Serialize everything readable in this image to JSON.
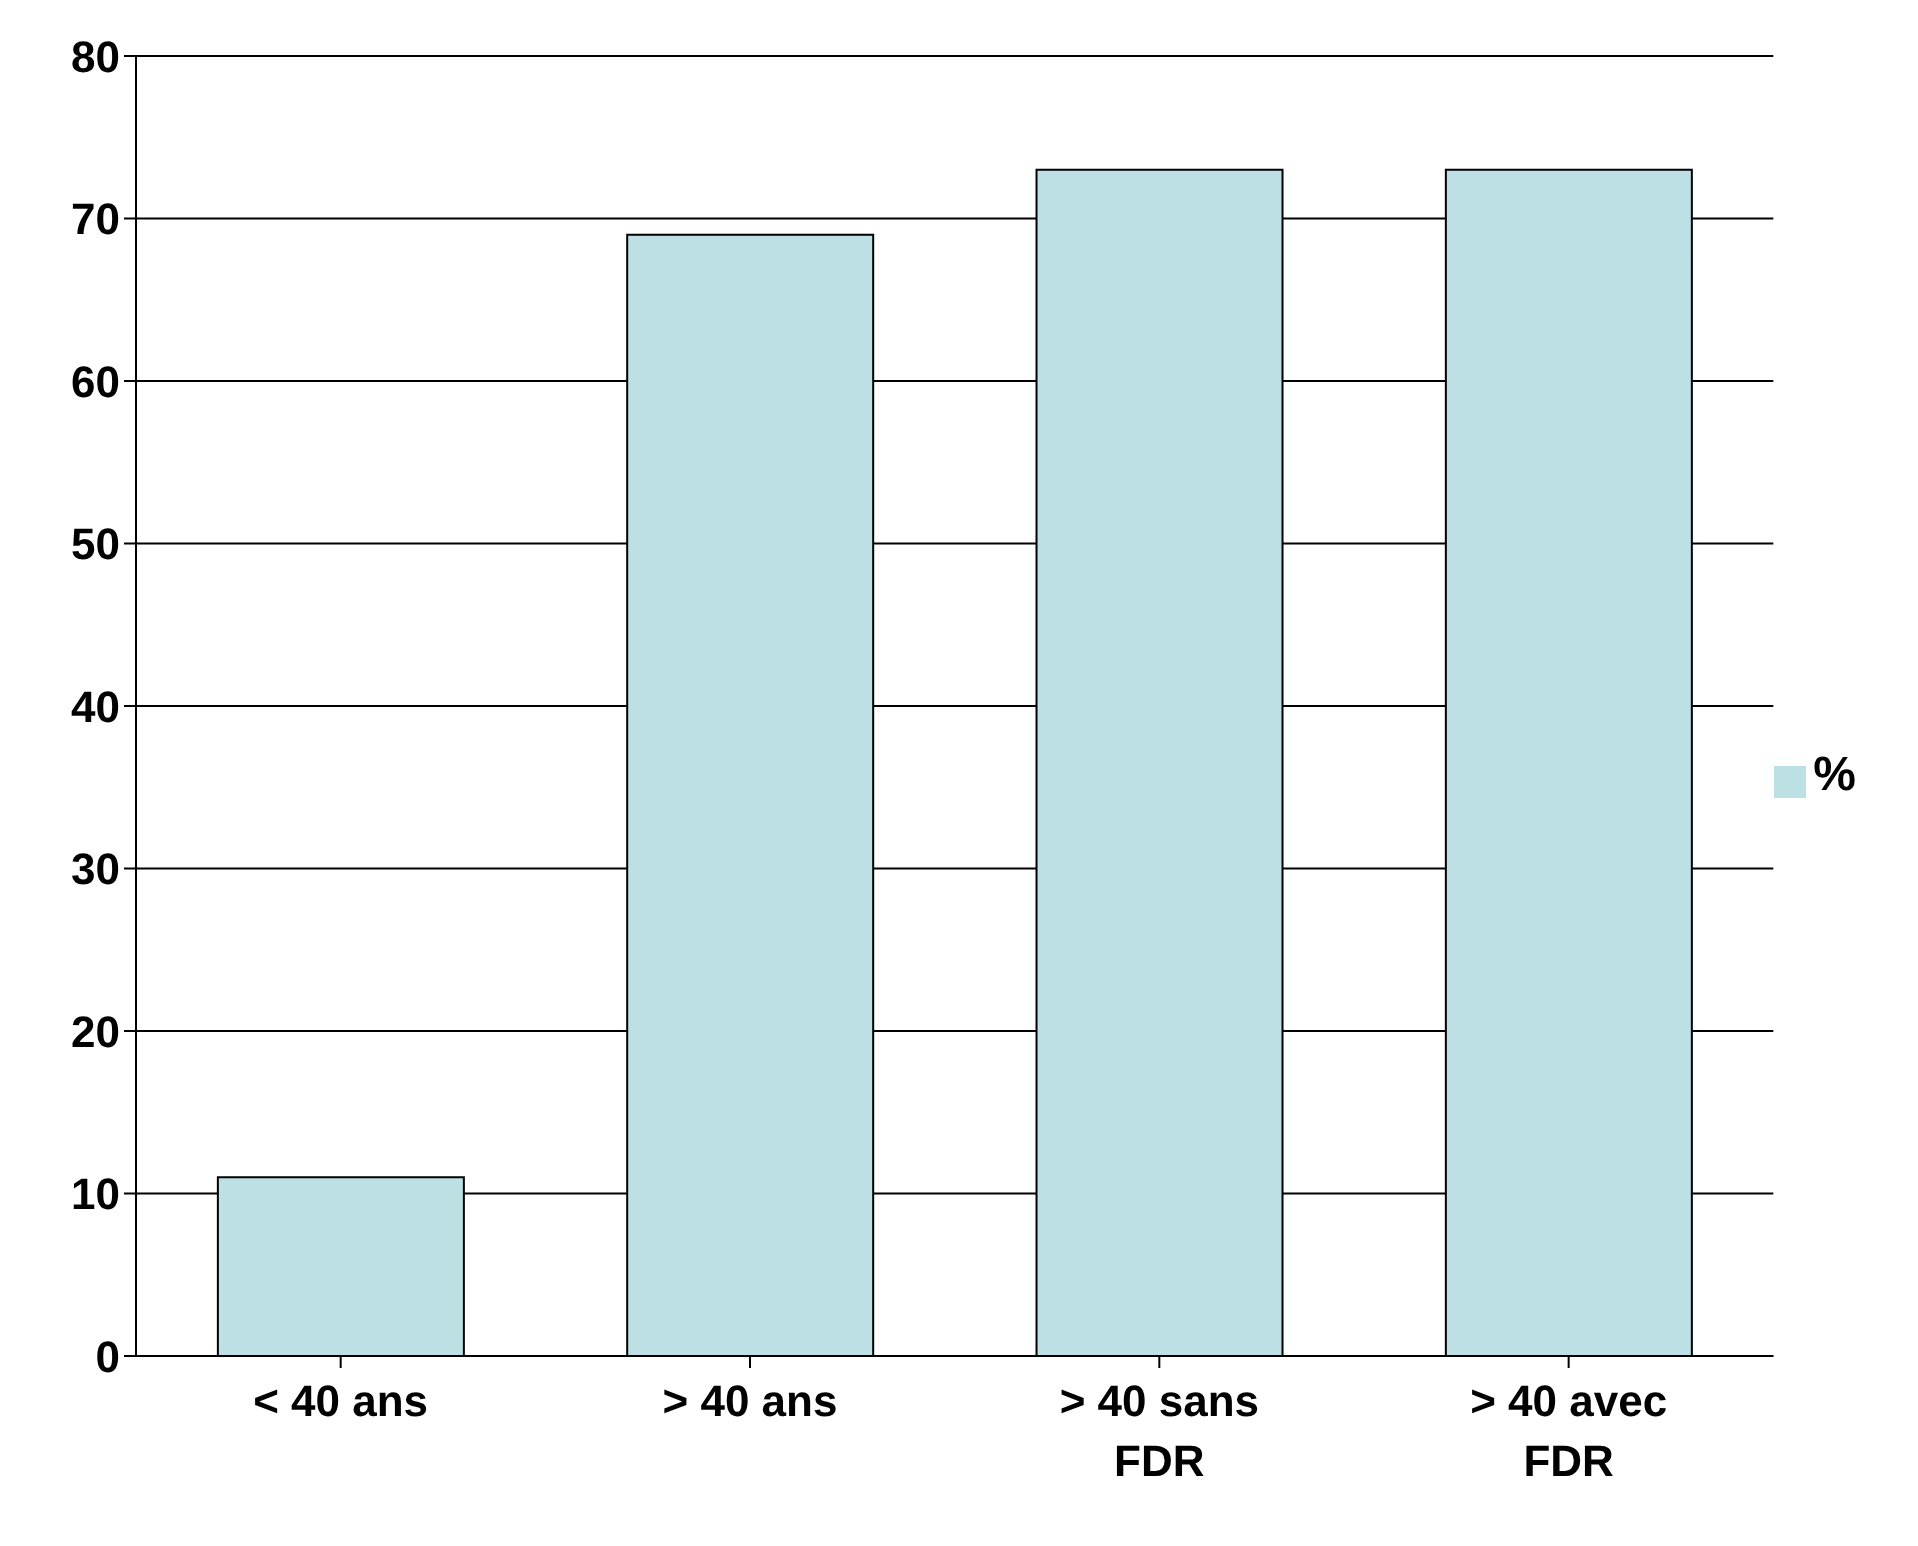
{
  "chart_data": {
    "type": "bar",
    "categories": [
      "< 40 ans",
      "> 40 ans",
      "> 40 sans FDR",
      "> 40 avec FDR"
    ],
    "series": [
      {
        "name": "%",
        "color": "#bce0e3",
        "values": [
          11,
          69,
          73,
          73
        ]
      }
    ],
    "ylim": [
      0,
      80
    ],
    "yticks": [
      0,
      10,
      20,
      30,
      40,
      50,
      60,
      70,
      80
    ],
    "grid": "y",
    "legend": "right"
  }
}
